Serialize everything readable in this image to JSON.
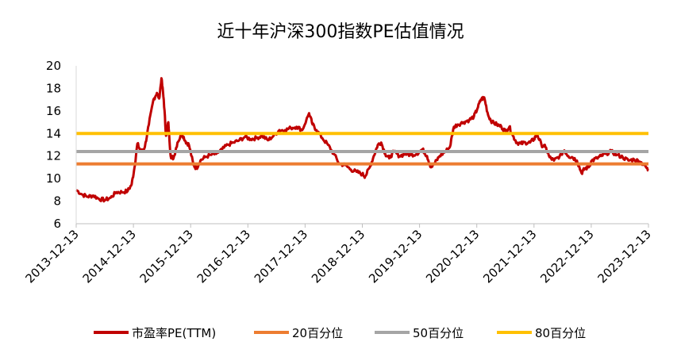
{
  "chart_data": {
    "type": "line",
    "title": "近十年沪深300指数PE估值情况",
    "xlabel": "",
    "ylabel": "",
    "ylim": [
      6,
      20
    ],
    "yticks": [
      "6",
      "8",
      "10",
      "12",
      "14",
      "16",
      "18",
      "20"
    ],
    "grid": false,
    "legend_position": "bottom",
    "x_tick_labels": [
      "2013-12-13",
      "2014-12-13",
      "2015-12-13",
      "2016-12-13",
      "2017-12-13",
      "2018-12-13",
      "2019-12-13",
      "2020-12-13",
      "2021-12-13",
      "2022-12-13",
      "2023-12-13"
    ],
    "series": [
      {
        "name": "市盈率PE(TTM)",
        "color": "#C00000",
        "points": [
          [
            2013.95,
            9.0
          ],
          [
            2014.05,
            8.6
          ],
          [
            2014.15,
            8.4
          ],
          [
            2014.25,
            8.5
          ],
          [
            2014.35,
            8.2
          ],
          [
            2014.45,
            8.1
          ],
          [
            2014.55,
            8.3
          ],
          [
            2014.65,
            8.8
          ],
          [
            2014.75,
            8.8
          ],
          [
            2014.85,
            8.9
          ],
          [
            2014.92,
            9.5
          ],
          [
            2014.97,
            11.0
          ],
          [
            2015.02,
            13.1
          ],
          [
            2015.08,
            12.4
          ],
          [
            2015.15,
            12.8
          ],
          [
            2015.22,
            14.8
          ],
          [
            2015.3,
            17.0
          ],
          [
            2015.36,
            17.6
          ],
          [
            2015.4,
            17.1
          ],
          [
            2015.44,
            18.9
          ],
          [
            2015.48,
            17.0
          ],
          [
            2015.52,
            13.8
          ],
          [
            2015.56,
            15.0
          ],
          [
            2015.6,
            12.0
          ],
          [
            2015.65,
            11.8
          ],
          [
            2015.72,
            13.2
          ],
          [
            2015.8,
            14.0
          ],
          [
            2015.86,
            13.3
          ],
          [
            2015.92,
            13.0
          ],
          [
            2016.0,
            11.2
          ],
          [
            2016.05,
            10.9
          ],
          [
            2016.12,
            11.6
          ],
          [
            2016.2,
            11.9
          ],
          [
            2016.3,
            12.1
          ],
          [
            2016.4,
            12.2
          ],
          [
            2016.5,
            12.6
          ],
          [
            2016.6,
            13.0
          ],
          [
            2016.7,
            13.2
          ],
          [
            2016.8,
            13.4
          ],
          [
            2016.9,
            13.7
          ],
          [
            2017.0,
            13.5
          ],
          [
            2017.1,
            13.6
          ],
          [
            2017.2,
            13.8
          ],
          [
            2017.3,
            13.4
          ],
          [
            2017.4,
            13.8
          ],
          [
            2017.5,
            14.3
          ],
          [
            2017.6,
            14.3
          ],
          [
            2017.7,
            14.5
          ],
          [
            2017.8,
            14.6
          ],
          [
            2017.9,
            14.3
          ],
          [
            2018.02,
            15.8
          ],
          [
            2018.08,
            14.8
          ],
          [
            2018.15,
            14.3
          ],
          [
            2018.25,
            13.6
          ],
          [
            2018.35,
            13.0
          ],
          [
            2018.45,
            12.2
          ],
          [
            2018.55,
            11.3
          ],
          [
            2018.65,
            11.2
          ],
          [
            2018.75,
            10.8
          ],
          [
            2018.85,
            10.6
          ],
          [
            2018.95,
            10.4
          ],
          [
            2019.0,
            10.2
          ],
          [
            2019.08,
            11.0
          ],
          [
            2019.15,
            12.0
          ],
          [
            2019.22,
            13.0
          ],
          [
            2019.28,
            13.2
          ],
          [
            2019.35,
            12.2
          ],
          [
            2019.42,
            11.8
          ],
          [
            2019.5,
            12.4
          ],
          [
            2019.6,
            12.0
          ],
          [
            2019.7,
            12.2
          ],
          [
            2019.8,
            12.1
          ],
          [
            2019.9,
            12.2
          ],
          [
            2020.0,
            12.6
          ],
          [
            2020.08,
            12.0
          ],
          [
            2020.15,
            11.0
          ],
          [
            2020.22,
            11.4
          ],
          [
            2020.3,
            12.0
          ],
          [
            2020.4,
            12.4
          ],
          [
            2020.48,
            12.8
          ],
          [
            2020.55,
            14.6
          ],
          [
            2020.62,
            14.8
          ],
          [
            2020.72,
            15.0
          ],
          [
            2020.82,
            15.2
          ],
          [
            2020.9,
            15.5
          ],
          [
            2020.96,
            16.2
          ],
          [
            2021.02,
            17.0
          ],
          [
            2021.08,
            17.2
          ],
          [
            2021.15,
            15.6
          ],
          [
            2021.22,
            15.0
          ],
          [
            2021.3,
            14.8
          ],
          [
            2021.38,
            14.6
          ],
          [
            2021.45,
            14.2
          ],
          [
            2021.52,
            14.6
          ],
          [
            2021.58,
            13.8
          ],
          [
            2021.65,
            13.2
          ],
          [
            2021.72,
            13.1
          ],
          [
            2021.8,
            13.2
          ],
          [
            2021.88,
            13.2
          ],
          [
            2021.95,
            13.5
          ],
          [
            2022.0,
            14.0
          ],
          [
            2022.08,
            13.0
          ],
          [
            2022.15,
            12.8
          ],
          [
            2022.22,
            11.9
          ],
          [
            2022.3,
            11.6
          ],
          [
            2022.4,
            12.0
          ],
          [
            2022.48,
            12.5
          ],
          [
            2022.55,
            12.0
          ],
          [
            2022.62,
            11.9
          ],
          [
            2022.7,
            11.6
          ],
          [
            2022.78,
            10.5
          ],
          [
            2022.84,
            10.9
          ],
          [
            2022.9,
            11.0
          ],
          [
            2022.96,
            11.6
          ],
          [
            2023.05,
            11.8
          ],
          [
            2023.12,
            12.0
          ],
          [
            2023.2,
            12.2
          ],
          [
            2023.3,
            12.4
          ],
          [
            2023.4,
            12.1
          ],
          [
            2023.5,
            11.9
          ],
          [
            2023.6,
            11.6
          ],
          [
            2023.7,
            11.7
          ],
          [
            2023.8,
            11.5
          ],
          [
            2023.88,
            11.2
          ],
          [
            2023.95,
            10.7
          ]
        ]
      },
      {
        "name": "20百分位",
        "color": "#ED7D31",
        "value": 11.3
      },
      {
        "name": "50百分位",
        "color": "#A5A5A5",
        "value": 12.4
      },
      {
        "name": "80百分位",
        "color": "#FFC000",
        "value": 14.0
      }
    ]
  }
}
